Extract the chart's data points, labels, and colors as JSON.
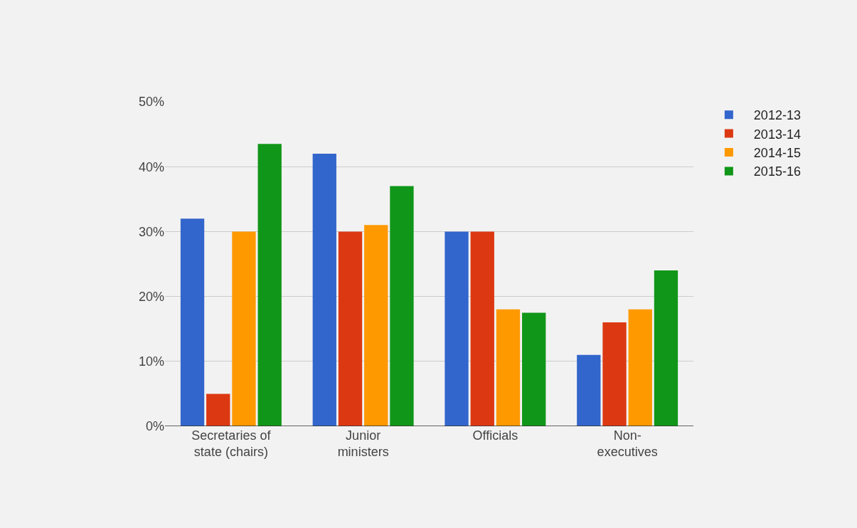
{
  "chart_data": {
    "type": "bar",
    "categories": [
      "Secretaries of state (chairs)",
      "Junior ministers",
      "Officials",
      "Non-executives"
    ],
    "series": [
      {
        "name": "2012-13",
        "color": "#3366cc",
        "values": [
          32,
          42,
          30,
          11
        ]
      },
      {
        "name": "2013-14",
        "color": "#dc3912",
        "values": [
          5,
          30,
          30,
          16
        ]
      },
      {
        "name": "2014-15",
        "color": "#ff9900",
        "values": [
          30,
          31,
          18,
          18
        ]
      },
      {
        "name": "2015-16",
        "color": "#109618",
        "values": [
          43.5,
          37,
          17.5,
          24
        ]
      }
    ],
    "ylim": [
      0,
      50
    ],
    "yticks": [
      {
        "value": 0,
        "label": "0%"
      },
      {
        "value": 10,
        "label": "10%"
      },
      {
        "value": 20,
        "label": "20%"
      },
      {
        "value": 30,
        "label": "30%"
      },
      {
        "value": 40,
        "label": "40%"
      },
      {
        "value": 50,
        "label": "50%"
      }
    ],
    "grid": "y",
    "legend": "top right"
  }
}
